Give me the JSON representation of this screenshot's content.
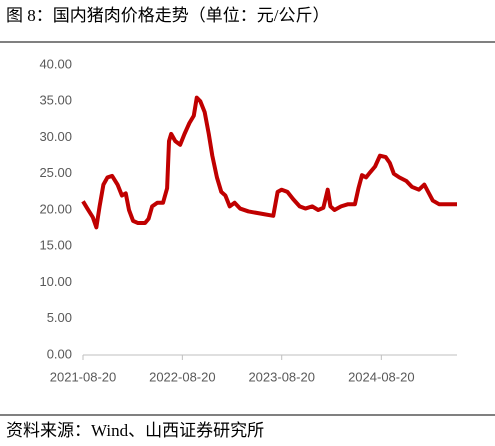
{
  "chart_data": {
    "type": "line",
    "title": "图 8：国内猪肉价格走势（单位：元/公斤）",
    "source": "资料来源：Wind、山西证券研究所",
    "x": [
      "2021-08-20",
      "2021-09-05",
      "2021-09-25",
      "2021-10-08",
      "2021-10-20",
      "2021-11-03",
      "2021-11-18",
      "2021-12-05",
      "2021-12-25",
      "2022-01-10",
      "2022-01-24",
      "2022-02-05",
      "2022-02-20",
      "2022-03-10",
      "2022-04-05",
      "2022-04-18",
      "2022-05-01",
      "2022-05-20",
      "2022-06-10",
      "2022-06-25",
      "2022-07-02",
      "2022-07-10",
      "2022-07-25",
      "2022-08-12",
      "2022-08-28",
      "2022-09-15",
      "2022-10-01",
      "2022-10-12",
      "2022-10-25",
      "2022-11-10",
      "2022-11-25",
      "2022-12-08",
      "2022-12-25",
      "2023-01-10",
      "2023-01-25",
      "2023-02-10",
      "2023-02-28",
      "2023-03-20",
      "2023-04-20",
      "2023-05-20",
      "2023-06-20",
      "2023-07-20",
      "2023-08-05",
      "2023-08-20",
      "2023-09-10",
      "2023-10-01",
      "2023-10-25",
      "2023-11-15",
      "2023-12-10",
      "2024-01-01",
      "2024-01-20",
      "2024-02-05",
      "2024-02-15",
      "2024-03-01",
      "2024-03-25",
      "2024-04-20",
      "2024-05-15",
      "2024-05-28",
      "2024-06-10",
      "2024-06-25",
      "2024-07-10",
      "2024-07-28",
      "2024-08-15",
      "2024-09-05",
      "2024-09-20",
      "2024-10-05",
      "2024-10-25",
      "2024-11-20",
      "2024-12-10",
      "2025-01-05",
      "2025-01-25",
      "2025-02-08",
      "2025-02-25",
      "2025-03-20",
      "2025-04-20",
      "2025-05-25"
    ],
    "series": [
      {
        "name": "国内猪肉价格",
        "color": "#c00000",
        "values": [
          21.2,
          20.2,
          19.0,
          17.6,
          20.5,
          23.5,
          24.5,
          24.7,
          23.5,
          22.0,
          22.3,
          20.0,
          18.5,
          18.2,
          18.2,
          18.8,
          20.5,
          21.0,
          21.0,
          23.0,
          29.5,
          30.5,
          29.5,
          29.0,
          30.5,
          32.0,
          33.0,
          35.5,
          35.0,
          33.5,
          30.5,
          27.5,
          24.5,
          22.5,
          22.0,
          20.5,
          21.0,
          20.2,
          19.8,
          19.6,
          19.4,
          19.2,
          22.5,
          22.8,
          22.5,
          21.5,
          20.5,
          20.2,
          20.5,
          20.0,
          20.3,
          22.8,
          20.5,
          20.0,
          20.5,
          20.8,
          20.8,
          23.0,
          24.8,
          24.5,
          25.2,
          26.0,
          27.5,
          27.3,
          26.5,
          25.0,
          24.5,
          24.0,
          23.2,
          22.8,
          23.5,
          22.5,
          21.3,
          20.8,
          20.8,
          20.8
        ]
      }
    ],
    "xlim": [
      "2021-08-20",
      "2025-05-25"
    ],
    "xticks": [
      "2021-08-20",
      "2022-08-20",
      "2023-08-20",
      "2024-08-20"
    ],
    "ylim": [
      0,
      40
    ],
    "yticks": [
      {
        "value": 0,
        "label": "0.00"
      },
      {
        "value": 5,
        "label": "5.00"
      },
      {
        "value": 10,
        "label": "10.00"
      },
      {
        "value": 15,
        "label": "15.00"
      },
      {
        "value": 20,
        "label": "20.00"
      },
      {
        "value": 25,
        "label": "25.00"
      },
      {
        "value": 30,
        "label": "30.00"
      },
      {
        "value": 35,
        "label": "35.00"
      },
      {
        "value": 40,
        "label": "40.00"
      }
    ],
    "grid": false
  }
}
